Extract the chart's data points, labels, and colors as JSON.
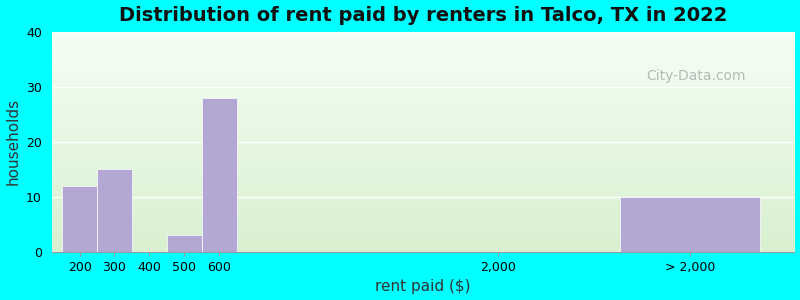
{
  "title": "Distribution of rent paid by renters in Talco, TX in 2022",
  "xlabel": "rent paid ($)",
  "ylabel": "households",
  "bar_color": "#b3a8d4",
  "background_color": "#00ffff",
  "ylim": [
    0,
    40
  ],
  "yticks": [
    0,
    10,
    20,
    30,
    40
  ],
  "bar_positions": [
    0,
    1,
    2,
    3,
    4,
    12,
    16
  ],
  "bar_widths": [
    1,
    1,
    1,
    1,
    1,
    1,
    4
  ],
  "values": [
    12,
    15,
    0,
    3,
    28,
    0,
    10
  ],
  "xtick_labels": [
    "200",
    "300",
    "400",
    "500",
    "600",
    "2,000",
    "> 2,000"
  ],
  "xlim": [
    -0.3,
    21
  ],
  "title_fontsize": 14,
  "axis_label_fontsize": 11,
  "tick_fontsize": 9,
  "watermark": "City-Data.com"
}
